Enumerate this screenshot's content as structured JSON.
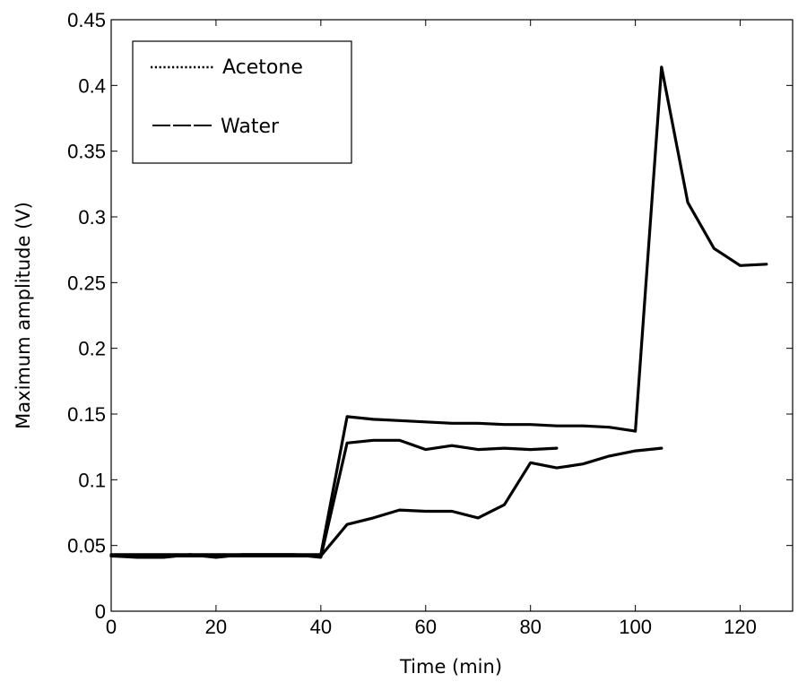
{
  "chart_data": {
    "type": "line",
    "xlabel": "Time (min)",
    "ylabel": "Maximum amplitude (V)",
    "xlim": [
      0,
      130
    ],
    "ylim": [
      0,
      0.45
    ],
    "xticks": [
      0,
      20,
      40,
      60,
      80,
      100,
      120
    ],
    "xtick_labels": [
      "0",
      "20",
      "40",
      "60",
      "80",
      "100",
      "120"
    ],
    "yticks": [
      0,
      0.05,
      0.1,
      0.15,
      0.2,
      0.25,
      0.3,
      0.35,
      0.4,
      0.45
    ],
    "ytick_labels": [
      "0",
      "0.05",
      "0.1",
      "0.15",
      "0.2",
      "0.25",
      "0.3",
      "0.35",
      "0.4",
      "0.45"
    ],
    "grid": false,
    "legend": {
      "position": "top-left",
      "entries": [
        {
          "label": "Acetone",
          "style": "dotted"
        },
        {
          "label": "Water",
          "style": "dashed"
        }
      ]
    },
    "line_color": "#000000",
    "series": [
      {
        "x": [
          0,
          5,
          10,
          15,
          20,
          25,
          30,
          35,
          40,
          45,
          50,
          55,
          60,
          65,
          70,
          75,
          80,
          85,
          90,
          95,
          100,
          105,
          110,
          115,
          120,
          125
        ],
        "values": [
          0.043,
          0.043,
          0.043,
          0.043,
          0.043,
          0.043,
          0.043,
          0.043,
          0.043,
          0.148,
          0.146,
          0.145,
          0.144,
          0.143,
          0.143,
          0.142,
          0.142,
          0.141,
          0.141,
          0.14,
          0.137,
          0.414,
          0.311,
          0.276,
          0.263,
          0.264
        ]
      },
      {
        "x": [
          0,
          5,
          10,
          15,
          20,
          25,
          30,
          35,
          40,
          45,
          50,
          55,
          60,
          65,
          70,
          75,
          80,
          85
        ],
        "values": [
          0.042,
          0.041,
          0.041,
          0.043,
          0.041,
          0.043,
          0.043,
          0.043,
          0.041,
          0.128,
          0.13,
          0.13,
          0.123,
          0.126,
          0.123,
          0.124,
          0.123,
          0.124
        ]
      },
      {
        "x": [
          0,
          5,
          10,
          15,
          20,
          25,
          30,
          35,
          40,
          45,
          50,
          55,
          60,
          65,
          70,
          75,
          80,
          85,
          90,
          95,
          100,
          105
        ],
        "values": [
          0.042,
          0.042,
          0.042,
          0.042,
          0.042,
          0.042,
          0.042,
          0.042,
          0.042,
          0.066,
          0.071,
          0.077,
          0.076,
          0.076,
          0.071,
          0.081,
          0.113,
          0.109,
          0.112,
          0.118,
          0.122,
          0.124
        ]
      }
    ]
  }
}
